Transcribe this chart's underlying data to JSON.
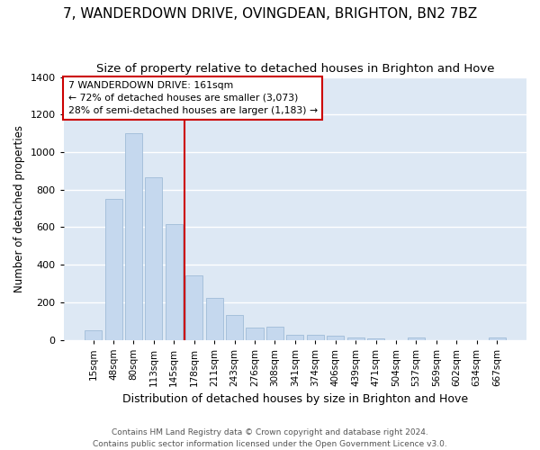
{
  "title": "7, WANDERDOWN DRIVE, OVINGDEAN, BRIGHTON, BN2 7BZ",
  "subtitle": "Size of property relative to detached houses in Brighton and Hove",
  "xlabel": "Distribution of detached houses by size in Brighton and Hove",
  "ylabel": "Number of detached properties",
  "footer_line1": "Contains HM Land Registry data © Crown copyright and database right 2024.",
  "footer_line2": "Contains public sector information licensed under the Open Government Licence v3.0.",
  "categories": [
    "15sqm",
    "48sqm",
    "80sqm",
    "113sqm",
    "145sqm",
    "178sqm",
    "211sqm",
    "243sqm",
    "276sqm",
    "308sqm",
    "341sqm",
    "374sqm",
    "406sqm",
    "439sqm",
    "471sqm",
    "504sqm",
    "537sqm",
    "569sqm",
    "602sqm",
    "634sqm",
    "667sqm"
  ],
  "values": [
    50,
    750,
    1100,
    865,
    615,
    345,
    225,
    130,
    65,
    70,
    28,
    28,
    20,
    14,
    5,
    0,
    10,
    0,
    0,
    0,
    10
  ],
  "bar_color": "#c5d8ee",
  "bar_edgecolor": "#a0bcd8",
  "vline_x_index": 5,
  "vline_color": "#cc0000",
  "annotation_line1": "7 WANDERDOWN DRIVE: 161sqm",
  "annotation_line2": "← 72% of detached houses are smaller (3,073)",
  "annotation_line3": "28% of semi-detached houses are larger (1,183) →",
  "annotation_box_edgecolor": "#cc0000",
  "annotation_box_facecolor": "white",
  "ylim": [
    0,
    1400
  ],
  "yticks": [
    0,
    200,
    400,
    600,
    800,
    1000,
    1200,
    1400
  ],
  "bg_color": "#dde8f4",
  "grid_color": "white",
  "title_fontsize": 11,
  "subtitle_fontsize": 9.5,
  "ylabel_fontsize": 8.5,
  "xlabel_fontsize": 9,
  "tick_fontsize": 8,
  "xtick_fontsize": 7.5,
  "footer_fontsize": 6.5
}
